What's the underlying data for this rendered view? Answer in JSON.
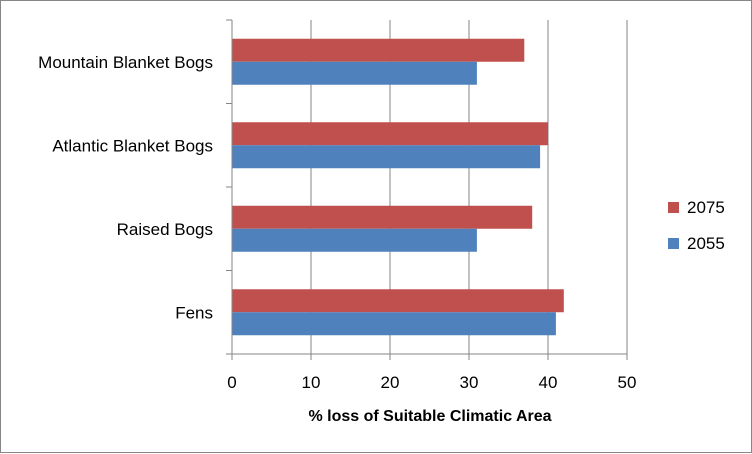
{
  "chart_data": {
    "type": "bar",
    "orientation": "horizontal",
    "title": "",
    "xlabel": "% loss of Suitable Climatic Area",
    "ylabel": "",
    "xlim": [
      0,
      50
    ],
    "x_ticks": [
      0,
      10,
      20,
      30,
      40,
      50
    ],
    "grid": "vertical major gridlines",
    "legend_position": "right",
    "categories": [
      "Mountain Blanket Bogs",
      "Atlantic Blanket Bogs",
      "Raised Bogs",
      "Fens"
    ],
    "series": [
      {
        "name": "2075",
        "color": "#C0504D",
        "values": [
          37,
          40,
          38,
          42
        ]
      },
      {
        "name": "2055",
        "color": "#4F81BD",
        "values": [
          31,
          39,
          31,
          41
        ]
      }
    ]
  }
}
